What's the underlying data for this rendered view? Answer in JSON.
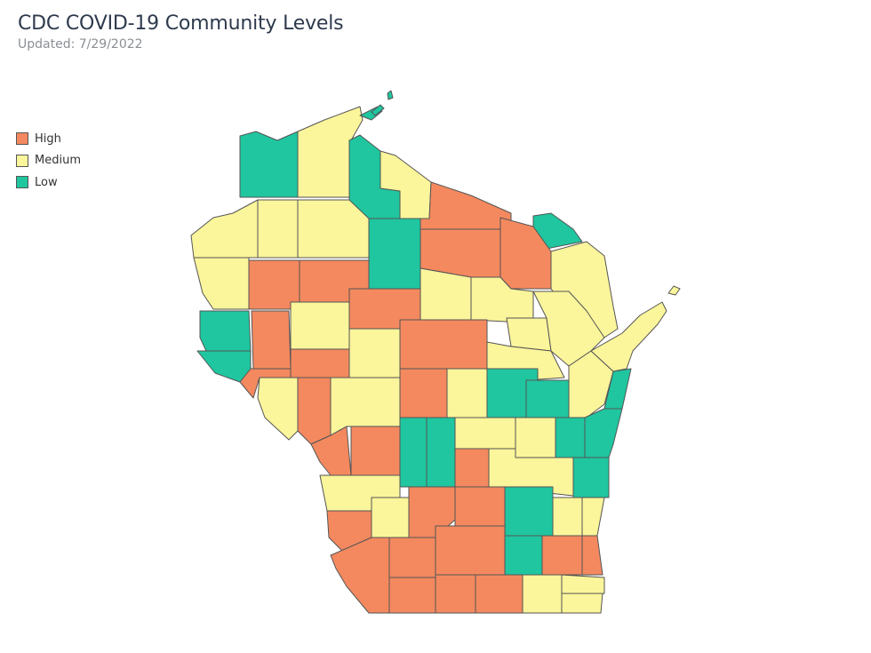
{
  "title": "CDC COVID-19 Community Levels",
  "subtitle": "Updated: 7/29/2022",
  "legend": [
    {
      "label": "High",
      "color": "#f4895f"
    },
    {
      "label": "Medium",
      "color": "#fbf59b"
    },
    {
      "label": "Low",
      "color": "#1fc69f"
    }
  ],
  "colors": {
    "high": "#f4895f",
    "medium": "#fbf59b",
    "low": "#1fc69f",
    "border": "#555555"
  }
}
